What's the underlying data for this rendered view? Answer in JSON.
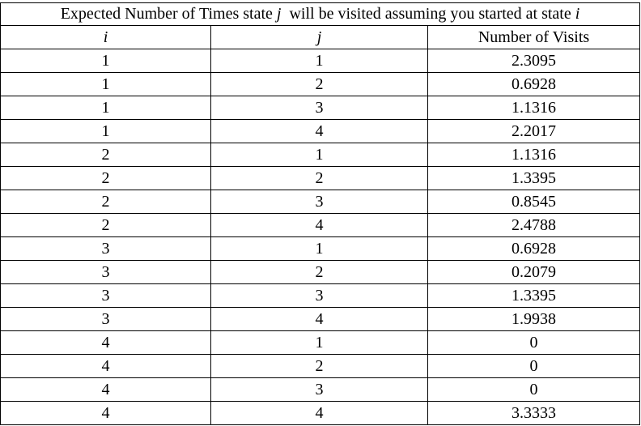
{
  "table": {
    "title": {
      "prefix": "Expected Number of Times state ",
      "var_j": "j",
      "middle": "  will be visited assuming you started at state ",
      "var_i": "i"
    },
    "columns": [
      "i",
      "j",
      "Number of Visits"
    ],
    "rows": [
      {
        "i": "1",
        "j": "1",
        "visits": "2.3095"
      },
      {
        "i": "1",
        "j": "2",
        "visits": "0.6928"
      },
      {
        "i": "1",
        "j": "3",
        "visits": "1.1316"
      },
      {
        "i": "1",
        "j": "4",
        "visits": "2.2017"
      },
      {
        "i": "2",
        "j": "1",
        "visits": "1.1316"
      },
      {
        "i": "2",
        "j": "2",
        "visits": "1.3395"
      },
      {
        "i": "2",
        "j": "3",
        "visits": "0.8545"
      },
      {
        "i": "2",
        "j": "4",
        "visits": "2.4788"
      },
      {
        "i": "3",
        "j": "1",
        "visits": "0.6928"
      },
      {
        "i": "3",
        "j": "2",
        "visits": "0.2079"
      },
      {
        "i": "3",
        "j": "3",
        "visits": "1.3395"
      },
      {
        "i": "3",
        "j": "4",
        "visits": "1.9938"
      },
      {
        "i": "4",
        "j": "1",
        "visits": "0"
      },
      {
        "i": "4",
        "j": "2",
        "visits": "0"
      },
      {
        "i": "4",
        "j": "3",
        "visits": "0"
      },
      {
        "i": "4",
        "j": "4",
        "visits": "3.3333"
      }
    ]
  }
}
